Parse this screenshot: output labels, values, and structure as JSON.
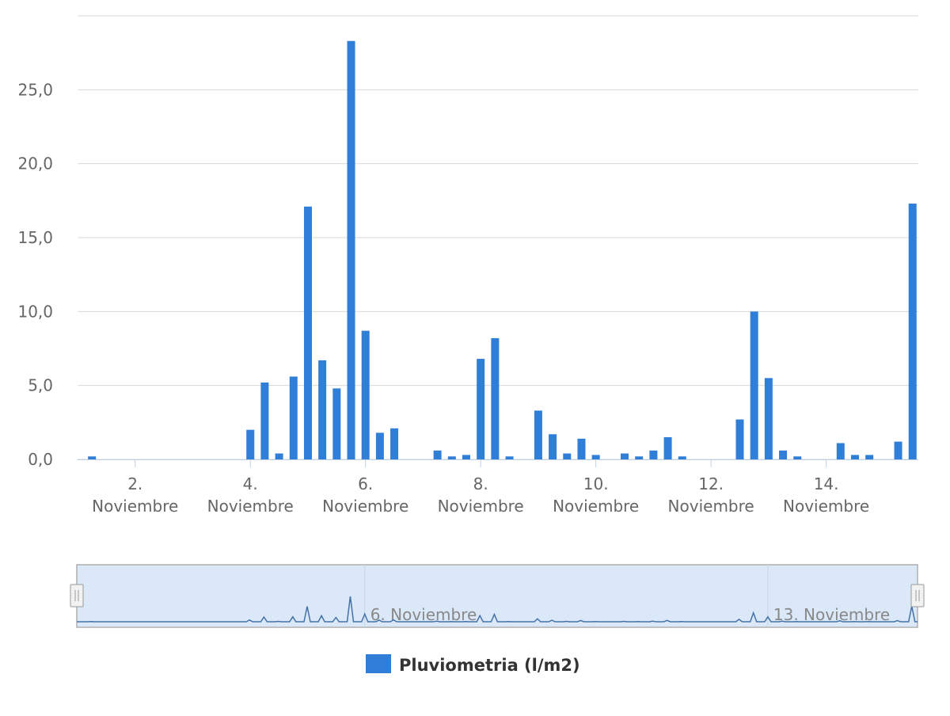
{
  "chart_data": {
    "type": "bar",
    "series": [
      {
        "name": "Pluviometria (l/m2)",
        "color": "#2f7ed8",
        "x": [
          1.25,
          4.0,
          4.25,
          4.5,
          4.75,
          5.0,
          5.25,
          5.5,
          5.75,
          6.0,
          6.25,
          6.5,
          7.25,
          7.5,
          7.75,
          8.0,
          8.25,
          8.5,
          9.0,
          9.25,
          9.5,
          9.75,
          10.0,
          10.5,
          10.75,
          11.0,
          11.25,
          11.5,
          12.5,
          12.75,
          13.0,
          13.25,
          13.5,
          14.25,
          14.5,
          14.75,
          15.25,
          15.5
        ],
        "values": [
          0.2,
          2.0,
          5.2,
          0.4,
          5.6,
          17.1,
          6.7,
          4.8,
          28.3,
          8.7,
          1.8,
          2.1,
          0.6,
          0.2,
          0.3,
          6.8,
          8.2,
          0.2,
          3.3,
          1.7,
          0.4,
          1.4,
          0.3,
          0.4,
          0.2,
          0.6,
          1.5,
          0.2,
          2.7,
          10.0,
          5.5,
          0.6,
          0.2,
          1.1,
          0.3,
          0.3,
          1.2,
          17.3
        ]
      }
    ],
    "x_unit": "Noviembre",
    "xlim": [
      1.0,
      15.6
    ],
    "ylim": [
      0,
      30
    ],
    "y_ticks": [
      "0,0",
      "5,0",
      "10,0",
      "15,0",
      "20,0",
      "25,0"
    ],
    "x_ticks": [
      {
        "day": 2,
        "line1": "2.",
        "line2": "Noviembre"
      },
      {
        "day": 4,
        "line1": "4.",
        "line2": "Noviembre"
      },
      {
        "day": 6,
        "line1": "6.",
        "line2": "Noviembre"
      },
      {
        "day": 8,
        "line1": "8.",
        "line2": "Noviembre"
      },
      {
        "day": 10,
        "line1": "10.",
        "line2": "Noviembre"
      },
      {
        "day": 12,
        "line1": "12.",
        "line2": "Noviembre"
      },
      {
        "day": 14,
        "line1": "14.",
        "line2": "Noviembre"
      }
    ],
    "grid": true,
    "legend": {
      "position": "bottom-center",
      "label": "Pluviometria (l/m2)"
    },
    "navigator": {
      "range": [
        1.0,
        15.6
      ],
      "labels": [
        {
          "day": 6,
          "text": "6. Noviembre"
        },
        {
          "day": 13,
          "text": "13. Noviembre"
        }
      ]
    }
  }
}
